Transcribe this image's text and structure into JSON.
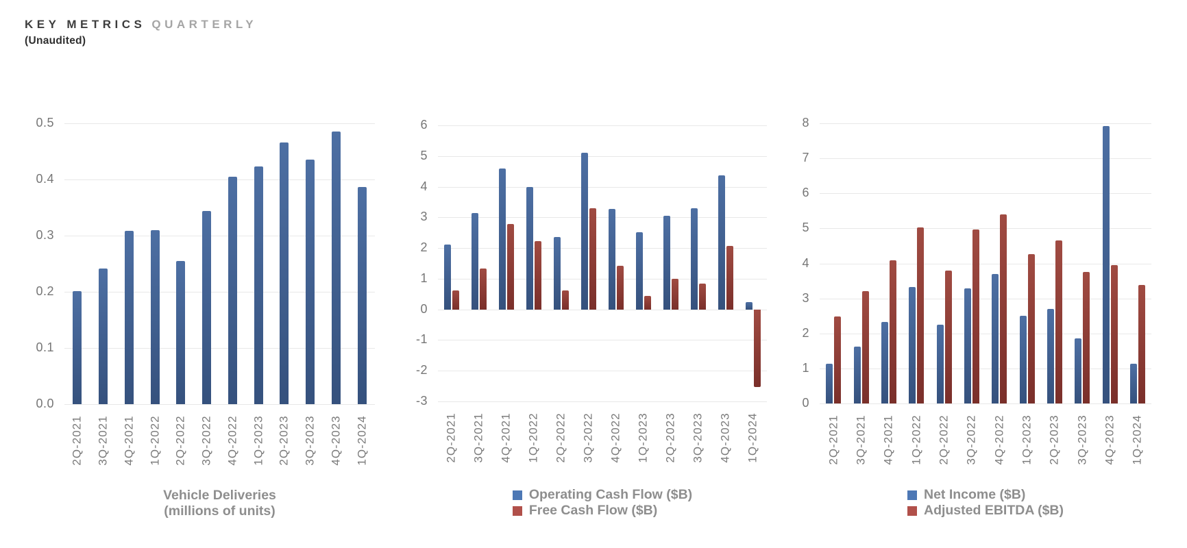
{
  "header": {
    "title_primary": "KEY METRICS",
    "title_secondary": "QUARTERLY",
    "subtitle": "(Unaudited)"
  },
  "colors": {
    "bar_blue_top": "#4d6fa3",
    "bar_blue_bottom": "#35517d",
    "bar_red_top": "#a04b42",
    "bar_red_bottom": "#7a2f2a",
    "legend_blue": "#4d78b5",
    "legend_red": "#b1504a",
    "axis_text": "#767676",
    "x_label_text": "#7b7b7b",
    "grid": "#e8e8e8",
    "caption_text": "#8e8e8e",
    "title_primary": "#3d3d3d",
    "title_secondary": "#a5a5a5"
  },
  "chart_data": [
    {
      "type": "bar",
      "title": "Vehicle Deliveries (millions of units)",
      "categories": [
        "2Q-2021",
        "3Q-2021",
        "4Q-2021",
        "1Q-2022",
        "2Q-2022",
        "3Q-2022",
        "4Q-2022",
        "1Q-2023",
        "2Q-2023",
        "3Q-2023",
        "4Q-2023",
        "1Q-2024"
      ],
      "series": [
        {
          "name": "Vehicle Deliveries (millions of units)",
          "color_key": "blue",
          "values": [
            0.201,
            0.241,
            0.309,
            0.31,
            0.255,
            0.344,
            0.405,
            0.423,
            0.466,
            0.435,
            0.485,
            0.387
          ]
        }
      ],
      "y_axis": {
        "min": 0,
        "max": 0.5,
        "step": 0.1,
        "tick_labels": [
          "0.5",
          "0.4",
          "0.3",
          "0.2",
          "0.1",
          "0.0"
        ]
      },
      "caption_lines": [
        "Vehicle Deliveries",
        "(millions of units)"
      ],
      "legend": []
    },
    {
      "type": "bar",
      "title": "Operating Cash Flow vs Free Cash Flow",
      "categories": [
        "2Q-2021",
        "3Q-2021",
        "4Q-2021",
        "1Q-2022",
        "2Q-2022",
        "3Q-2022",
        "4Q-2022",
        "1Q-2023",
        "2Q-2023",
        "3Q-2023",
        "4Q-2023",
        "1Q-2024"
      ],
      "series": [
        {
          "name": "Operating Cash Flow ($B)",
          "color_key": "blue",
          "values": [
            2.12,
            3.15,
            4.59,
            4.0,
            2.35,
            5.1,
            3.28,
            2.51,
            3.06,
            3.31,
            4.37,
            0.24
          ]
        },
        {
          "name": "Free Cash Flow ($B)",
          "color_key": "red",
          "values": [
            0.62,
            1.33,
            2.78,
            2.23,
            0.62,
            3.3,
            1.42,
            0.44,
            1.0,
            0.85,
            2.06,
            -2.53
          ]
        }
      ],
      "y_axis": {
        "min": -3,
        "max": 6,
        "step": 1,
        "tick_labels": [
          "6",
          "5",
          "4",
          "3",
          "2",
          "1",
          "0",
          "-1",
          "-2",
          "-3"
        ]
      },
      "caption_lines": [],
      "legend": [
        {
          "label": "Operating Cash Flow ($B)",
          "color_key": "blue"
        },
        {
          "label": "Free Cash Flow ($B)",
          "color_key": "red"
        }
      ]
    },
    {
      "type": "bar",
      "title": "Net Income vs Adjusted EBITDA",
      "categories": [
        "2Q-2021",
        "3Q-2021",
        "4Q-2021",
        "1Q-2022",
        "2Q-2022",
        "3Q-2022",
        "4Q-2022",
        "1Q-2023",
        "2Q-2023",
        "3Q-2023",
        "4Q-2023",
        "1Q-2024"
      ],
      "series": [
        {
          "name": "Net Income ($B)",
          "color_key": "blue",
          "values": [
            1.14,
            1.62,
            2.32,
            3.32,
            2.26,
            3.29,
            3.69,
            2.51,
            2.7,
            1.85,
            7.93,
            1.13
          ]
        },
        {
          "name": "Adjusted EBITDA ($B)",
          "color_key": "red",
          "values": [
            2.49,
            3.2,
            4.09,
            5.02,
            3.79,
            4.97,
            5.4,
            4.27,
            4.65,
            3.76,
            3.95,
            3.38
          ]
        }
      ],
      "y_axis": {
        "min": 0,
        "max": 8,
        "step": 1,
        "tick_labels": [
          "8",
          "7",
          "6",
          "5",
          "4",
          "3",
          "2",
          "1",
          "0"
        ]
      },
      "caption_lines": [],
      "legend": [
        {
          "label": "Net Income ($B)",
          "color_key": "blue"
        },
        {
          "label": "Adjusted EBITDA ($B)",
          "color_key": "red"
        }
      ]
    }
  ]
}
